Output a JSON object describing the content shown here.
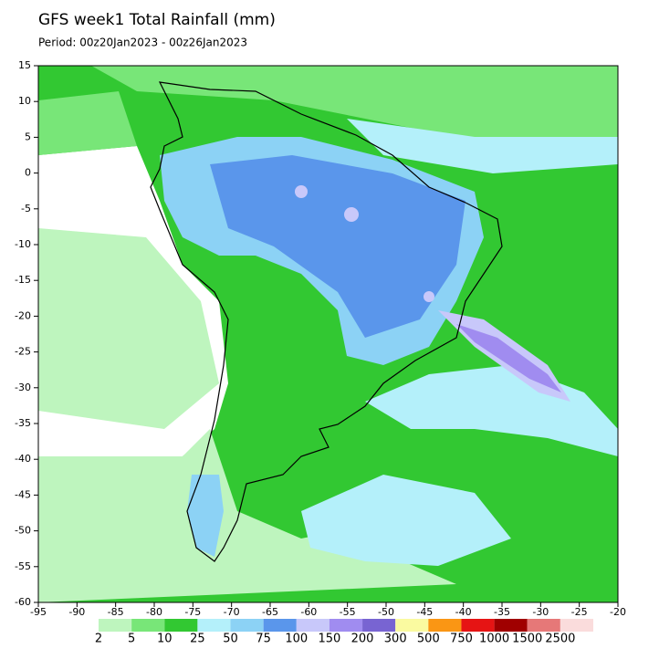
{
  "map": {
    "title": "GFS week1 Total Rainfall (mm)",
    "period": "Period: 00z20Jan2023 - 00z26Jan2023",
    "xlim": [
      -95,
      -20
    ],
    "ylim": [
      -60,
      15
    ],
    "xticks": [
      -95,
      -90,
      -85,
      -80,
      -75,
      -70,
      -65,
      -60,
      -55,
      -50,
      -45,
      -40,
      -35,
      -30,
      -25,
      -20
    ],
    "yticks": [
      15,
      10,
      5,
      0,
      -5,
      -10,
      -15,
      -20,
      -25,
      -30,
      -35,
      -40,
      -45,
      -50,
      -55,
      -60
    ],
    "colorbar": {
      "labels": [
        2,
        5,
        10,
        25,
        50,
        75,
        100,
        150,
        200,
        300,
        500,
        750,
        1000,
        1500,
        2500
      ],
      "colors": [
        "#bef5be",
        "#78e678",
        "#32c832",
        "#b4f0fa",
        "#8cd2f5",
        "#5a96eb",
        "#c8c8fa",
        "#a08cf0",
        "#7864d2",
        "#fafaa0",
        "#fa9614",
        "#e61414",
        "#a00000",
        "#e67878",
        "#fadcdc"
      ]
    }
  }
}
